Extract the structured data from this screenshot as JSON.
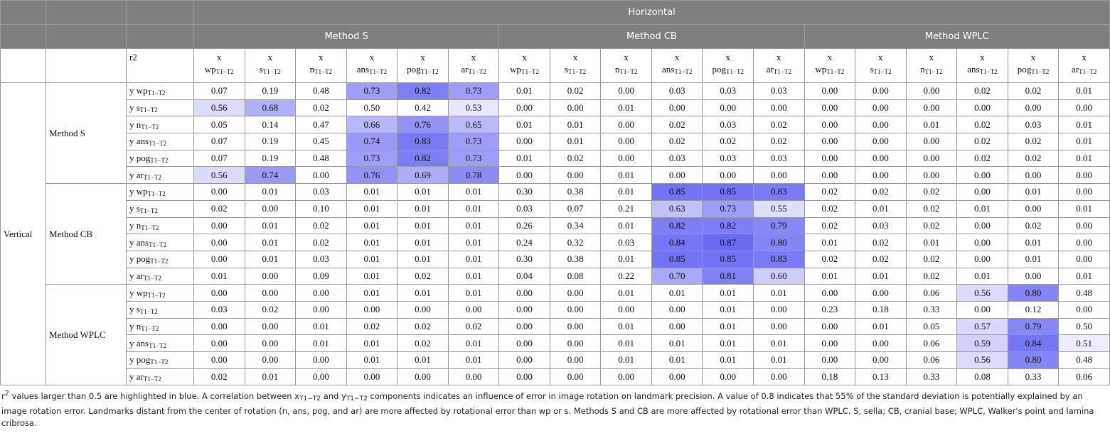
{
  "table": {
    "horizontal_label": "Horizontal",
    "vertical_label": "Vertical",
    "methods": [
      "Method S",
      "Method CB",
      "Method WPLC"
    ],
    "corner_label": "r2",
    "x_prefix": "x",
    "y_prefix": "y",
    "subscript": "T1−T2",
    "landmarks": [
      "wp",
      "s",
      "n",
      "ans",
      "pog",
      "ar"
    ],
    "highlight_above": 0.5,
    "highlight_color": "#4f4ff0",
    "rows": [
      [
        "0.07",
        "0.19",
        "0.48",
        "0.73",
        "0.82",
        "0.73",
        "0.01",
        "0.02",
        "0.00",
        "0.03",
        "0.03",
        "0.03",
        "0.00",
        "0.00",
        "0.00",
        "0.02",
        "0.02",
        "0.01"
      ],
      [
        "0.56",
        "0.68",
        "0.02",
        "0.50",
        "0.42",
        "0.53",
        "0.00",
        "0.00",
        "0.01",
        "0.00",
        "0.00",
        "0.00",
        "0.00",
        "0.00",
        "0.00",
        "0.00",
        "0.00",
        "0.00"
      ],
      [
        "0.05",
        "0.14",
        "0.47",
        "0.66",
        "0.76",
        "0.65",
        "0.01",
        "0.01",
        "0.00",
        "0.02",
        "0.03",
        "0.02",
        "0.00",
        "0.00",
        "0.01",
        "0.02",
        "0.03",
        "0.01"
      ],
      [
        "0.07",
        "0.19",
        "0.45",
        "0.74",
        "0.83",
        "0.73",
        "0.00",
        "0.01",
        "0.00",
        "0.02",
        "0.02",
        "0.02",
        "0.00",
        "0.00",
        "0.00",
        "0.02",
        "0.02",
        "0.01"
      ],
      [
        "0.07",
        "0.19",
        "0.48",
        "0.73",
        "0.82",
        "0.73",
        "0.01",
        "0.02",
        "0.00",
        "0.03",
        "0.03",
        "0.03",
        "0.00",
        "0.00",
        "0.00",
        "0.02",
        "0.02",
        "0.01"
      ],
      [
        "0.56",
        "0.74",
        "0.00",
        "0.76",
        "0.69",
        "0.78",
        "0.00",
        "0.00",
        "0.01",
        "0.00",
        "0.00",
        "0.00",
        "0.00",
        "0.00",
        "0.00",
        "0.00",
        "0.00",
        "0.00"
      ],
      [
        "0.00",
        "0.01",
        "0.03",
        "0.01",
        "0.01",
        "0.01",
        "0.30",
        "0.38",
        "0.01",
        "0.85",
        "0.85",
        "0.83",
        "0.02",
        "0.02",
        "0.02",
        "0.00",
        "0.01",
        "0.00"
      ],
      [
        "0.02",
        "0.00",
        "0.10",
        "0.01",
        "0.01",
        "0.01",
        "0.03",
        "0.07",
        "0.21",
        "0.63",
        "0.73",
        "0.55",
        "0.02",
        "0.01",
        "0.02",
        "0.01",
        "0.00",
        "0.01"
      ],
      [
        "0.00",
        "0.01",
        "0.02",
        "0.01",
        "0.01",
        "0.01",
        "0.26",
        "0.34",
        "0.01",
        "0.82",
        "0.82",
        "0.79",
        "0.02",
        "0.03",
        "0.02",
        "0.00",
        "0.02",
        "0.00"
      ],
      [
        "0.00",
        "0.01",
        "0.02",
        "0.01",
        "0.01",
        "0.01",
        "0.24",
        "0.32",
        "0.03",
        "0.84",
        "0.87",
        "0.80",
        "0.01",
        "0.02",
        "0.01",
        "0.00",
        "0.01",
        "0.00"
      ],
      [
        "0.00",
        "0.01",
        "0.03",
        "0.01",
        "0.01",
        "0.01",
        "0.30",
        "0.38",
        "0.01",
        "0.85",
        "0.85",
        "0.83",
        "0.02",
        "0.02",
        "0.02",
        "0.00",
        "0.01",
        "0.00"
      ],
      [
        "0.01",
        "0.00",
        "0.09",
        "0.01",
        "0.02",
        "0.01",
        "0.04",
        "0.08",
        "0.22",
        "0.70",
        "0.81",
        "0.60",
        "0.01",
        "0.01",
        "0.02",
        "0.01",
        "0.00",
        "0.01"
      ],
      [
        "0.00",
        "0.00",
        "0.00",
        "0.01",
        "0.01",
        "0.01",
        "0.00",
        "0.00",
        "0.01",
        "0.01",
        "0.01",
        "0.01",
        "0.00",
        "0.00",
        "0.06",
        "0.56",
        "0.80",
        "0.48"
      ],
      [
        "0.03",
        "0.02",
        "0.00",
        "0.00",
        "0.00",
        "0.00",
        "0.00",
        "0.00",
        "0.00",
        "0.00",
        "0.01",
        "0.00",
        "0.23",
        "0.18",
        "0.33",
        "0.00",
        "0.12",
        "0.00"
      ],
      [
        "0.00",
        "0.00",
        "0.01",
        "0.02",
        "0.02",
        "0.02",
        "0.00",
        "0.00",
        "0.01",
        "0.00",
        "0.01",
        "0.00",
        "0.00",
        "0.01",
        "0.05",
        "0.57",
        "0.79",
        "0.50"
      ],
      [
        "0.00",
        "0.00",
        "0.01",
        "0.01",
        "0.02",
        "0.01",
        "0.00",
        "0.00",
        "0.01",
        "0.01",
        "0.01",
        "0.01",
        "0.00",
        "0.00",
        "0.06",
        "0.59",
        "0.84",
        "0.51"
      ],
      [
        "0.00",
        "0.00",
        "0.00",
        "0.01",
        "0.01",
        "0.01",
        "0.00",
        "0.00",
        "0.01",
        "0.01",
        "0.01",
        "0.01",
        "0.00",
        "0.00",
        "0.06",
        "0.56",
        "0.80",
        "0.48"
      ],
      [
        "0.02",
        "0.01",
        "0.00",
        "0.00",
        "0.00",
        "0.00",
        "0.00",
        "0.00",
        "0.00",
        "0.00",
        "0.00",
        "0.00",
        "0.18",
        "0.13",
        "0.33",
        "0.08",
        "0.33",
        "0.06"
      ]
    ]
  },
  "note": [
    "r",
    "2",
    " values larger than 0.5 are highlighted in blue. A correlation between x",
    "T1−T2",
    " and y",
    "T1−T2",
    " components indicates an influence of error in image rotation on landmark precision. A value of 0.8 indicates that 55% of the standard deviation is potentially explained by an image rotation error. Landmarks distant from the center of rotation (n, ans, pog, and ar) are more affected by rotational error than wp or s. Methods S and CB are more affected by rotational error than WPLC. S, sella; CB, cranial base; WPLC, Walker's point and lamina cribrosa."
  ]
}
